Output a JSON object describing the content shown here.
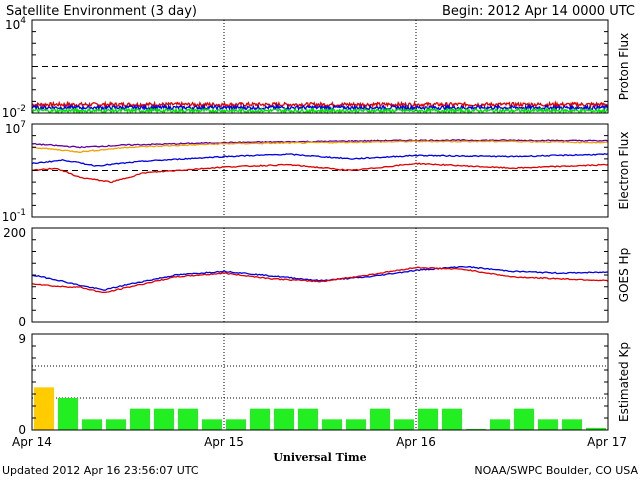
{
  "header": {
    "title": "Satellite Environment (3 day)",
    "begin": "Begin:  2012 Apr 14 0000 UTC"
  },
  "footer": {
    "updated": "Updated 2012 Apr 16 23:56:07 UTC",
    "credit": "NOAA/SWPC Boulder, CO USA"
  },
  "colors": {
    "red": "#e00000",
    "blue": "#0000e0",
    "green": "#00e000",
    "orange": "#f0a000",
    "purple": "#6000a0",
    "kp_green": "#22ee22",
    "kp_yellow": "#ffcc00"
  },
  "chart_data": {
    "type": "multi-panel",
    "x": {
      "label": "Universal Time",
      "ticks": [
        "Apr 14",
        "Apr 15",
        "Apr 16",
        "Apr 17"
      ],
      "range_hours": [
        0,
        72
      ]
    },
    "panels": [
      {
        "id": "proton",
        "type": "line",
        "ylabel": "Proton Flux",
        "yscale": "log",
        "ylim_exp": [
          -2,
          4
        ],
        "tick_labels": [
          {
            "base": "10",
            "exp": "4",
            "value_exp": 4
          },
          {
            "base": "10",
            "exp": "-2",
            "value_exp": -2
          }
        ],
        "threshold_exp": 1,
        "series": [
          {
            "color": "red",
            "level_exp": -1.45,
            "noise": 0.12
          },
          {
            "color": "blue",
            "level_exp": -1.65,
            "noise": 0.12
          },
          {
            "color": "green",
            "level_exp": -1.85,
            "noise": 0.12
          }
        ]
      },
      {
        "id": "electron",
        "type": "line",
        "ylabel": "Electron Flux",
        "yscale": "log",
        "ylim_exp": [
          -1,
          7
        ],
        "tick_labels": [
          {
            "base": "10",
            "exp": "7",
            "value_exp": 7
          },
          {
            "base": "10",
            "exp": "-1",
            "value_exp": -1
          }
        ],
        "threshold_exp": 3,
        "series": [
          {
            "color": "purple",
            "points": [
              [
                0,
                5.3
              ],
              [
                6,
                5.0
              ],
              [
                12,
                5.2
              ],
              [
                24,
                5.4
              ],
              [
                36,
                5.5
              ],
              [
                48,
                5.6
              ],
              [
                60,
                5.6
              ],
              [
                72,
                5.55
              ]
            ]
          },
          {
            "color": "orange",
            "points": [
              [
                0,
                5.0
              ],
              [
                6,
                4.6
              ],
              [
                12,
                5.0
              ],
              [
                24,
                5.3
              ],
              [
                36,
                5.4
              ],
              [
                48,
                5.5
              ],
              [
                60,
                5.5
              ],
              [
                72,
                5.4
              ]
            ]
          },
          {
            "color": "blue",
            "points": [
              [
                0,
                3.6
              ],
              [
                4,
                3.9
              ],
              [
                8,
                3.4
              ],
              [
                14,
                3.8
              ],
              [
                24,
                4.2
              ],
              [
                32,
                4.4
              ],
              [
                40,
                4.0
              ],
              [
                48,
                4.3
              ],
              [
                60,
                4.2
              ],
              [
                72,
                4.4
              ]
            ]
          },
          {
            "color": "red",
            "points": [
              [
                0,
                3.0
              ],
              [
                3,
                3.2
              ],
              [
                6,
                2.4
              ],
              [
                10,
                2.0
              ],
              [
                14,
                2.8
              ],
              [
                24,
                3.3
              ],
              [
                32,
                3.5
              ],
              [
                40,
                3.0
              ],
              [
                48,
                3.6
              ],
              [
                60,
                3.2
              ],
              [
                72,
                3.5
              ]
            ]
          }
        ]
      },
      {
        "id": "hp",
        "type": "line",
        "ylabel": "GOES Hp",
        "yscale": "linear",
        "ylim": [
          0,
          200
        ],
        "tick_labels": [
          {
            "base": "200",
            "exp": "",
            "value": 200
          },
          {
            "base": "0",
            "exp": "",
            "value": 0
          }
        ],
        "series": [
          {
            "color": "blue",
            "points": [
              [
                0,
                100
              ],
              [
                3,
                90
              ],
              [
                6,
                78
              ],
              [
                9,
                68
              ],
              [
                12,
                80
              ],
              [
                18,
                100
              ],
              [
                24,
                108
              ],
              [
                30,
                98
              ],
              [
                36,
                88
              ],
              [
                42,
                96
              ],
              [
                48,
                110
              ],
              [
                54,
                118
              ],
              [
                60,
                108
              ],
              [
                66,
                104
              ],
              [
                72,
                106
              ]
            ]
          },
          {
            "color": "red",
            "points": [
              [
                0,
                82
              ],
              [
                3,
                76
              ],
              [
                6,
                74
              ],
              [
                9,
                62
              ],
              [
                12,
                74
              ],
              [
                18,
                96
              ],
              [
                24,
                104
              ],
              [
                30,
                92
              ],
              [
                36,
                86
              ],
              [
                42,
                100
              ],
              [
                48,
                116
              ],
              [
                54,
                112
              ],
              [
                60,
                96
              ],
              [
                66,
                92
              ],
              [
                72,
                88
              ]
            ]
          }
        ]
      },
      {
        "id": "kp",
        "type": "bar",
        "ylabel": "Estimated Kp",
        "ylim": [
          0,
          9
        ],
        "tick_labels": [
          {
            "base": "9",
            "exp": "",
            "value": 9
          },
          {
            "base": "0",
            "exp": "",
            "value": 0
          }
        ],
        "grid": [
          3,
          6,
          9
        ],
        "bar_hours": 3,
        "values": [
          4,
          3,
          1,
          1,
          2,
          2,
          2,
          1,
          1,
          2,
          2,
          2,
          1,
          1,
          2,
          1,
          2,
          2,
          0.1,
          1,
          2,
          1,
          1,
          0.2
        ],
        "colors": [
          "kp_yellow",
          "kp_green",
          "kp_green",
          "kp_green",
          "kp_green",
          "kp_green",
          "kp_green",
          "kp_green",
          "kp_green",
          "kp_green",
          "kp_green",
          "kp_green",
          "kp_green",
          "kp_green",
          "kp_green",
          "kp_green",
          "kp_green",
          "kp_green",
          "kp_green",
          "kp_green",
          "kp_green",
          "kp_green",
          "kp_green",
          "kp_green"
        ]
      }
    ]
  }
}
